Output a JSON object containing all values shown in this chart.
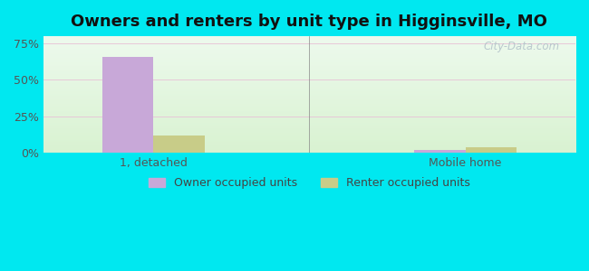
{
  "title": "Owners and renters by unit type in Higginsville, MO",
  "categories": [
    "1, detached",
    "Mobile home"
  ],
  "owner_values": [
    66.0,
    1.5
  ],
  "renter_values": [
    12.0,
    3.5
  ],
  "owner_color": "#c8a8d8",
  "renter_color": "#c8cc88",
  "yticks": [
    0,
    25,
    50,
    75
  ],
  "ytick_labels": [
    "0%",
    "25%",
    "50%",
    "75%"
  ],
  "ylim": [
    0,
    80
  ],
  "bar_width": 0.28,
  "watermark": "City-Data.com",
  "legend_labels": [
    "Owner occupied units",
    "Renter occupied units"
  ],
  "title_fontsize": 13,
  "tick_fontsize": 9,
  "legend_fontsize": 9,
  "outer_bg": "#00e8f0"
}
